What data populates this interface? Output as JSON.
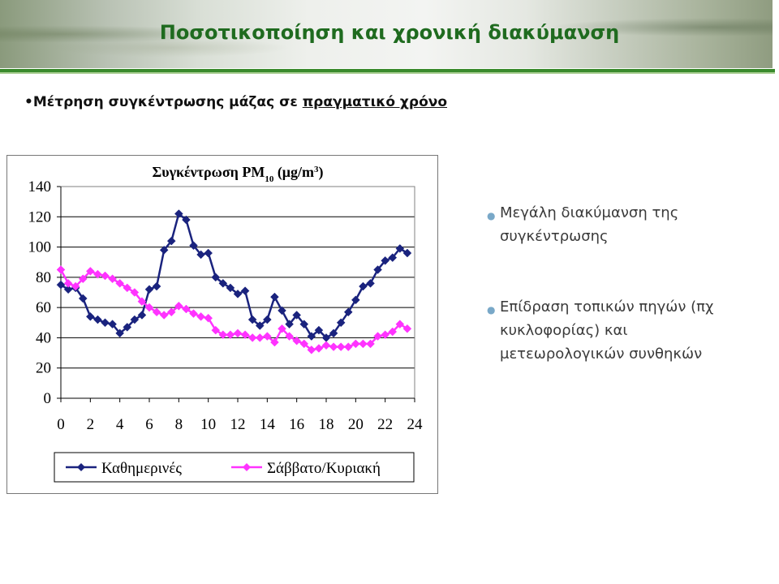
{
  "header": {
    "title": "Ποσοτικοποίηση και  χρονική διακύμανση"
  },
  "bullet": {
    "text": "Μέτρηση συγκέντρωσης μάζας σε ",
    "underlined": "πραγματικό χρόνο"
  },
  "side_points": [
    {
      "text": "Μεγάλη διακύμανση της συγκέντρωσης"
    },
    {
      "text": "Επίδραση τοπικών πηγών (πχ κυκλοφορίας) και μετεωρολογικών συνθηκών"
    }
  ],
  "colors": {
    "title": "#1f6b1f",
    "accent_line": "#3a8a2c",
    "series_weekday": "#1a237e",
    "series_weekend": "#ff33ff"
  },
  "chart_data": {
    "type": "line",
    "title": "Συγκέντρωση PM",
    "title_sub": "10",
    "title_unit": " (μg/m",
    "title_sup": "3",
    "title_end": ")",
    "xlim": [
      0,
      24
    ],
    "ylim": [
      0,
      140
    ],
    "x_ticks": [
      "0",
      "2",
      "4",
      "6",
      "8",
      "10",
      "12",
      "14",
      "16",
      "18",
      "20",
      "22",
      "24"
    ],
    "y_ticks": [
      "0",
      "20",
      "40",
      "60",
      "80",
      "100",
      "120",
      "140"
    ],
    "grid": true,
    "legend_position": "bottom",
    "x": [
      0,
      0.5,
      1,
      1.5,
      2,
      2.5,
      3,
      3.5,
      4,
      4.5,
      5,
      5.5,
      6,
      6.5,
      7,
      7.5,
      8,
      8.5,
      9,
      9.5,
      10,
      10.5,
      11,
      11.5,
      12,
      12.5,
      13,
      13.5,
      14,
      14.5,
      15,
      15.5,
      16,
      16.5,
      17,
      17.5,
      18,
      18.5,
      19,
      19.5,
      20,
      20.5,
      21,
      21.5,
      22,
      22.5,
      23,
      23.5
    ],
    "series": [
      {
        "name": "Καθημερινές",
        "color": "#1a237e",
        "marker": "diamond",
        "values": [
          75,
          72,
          73,
          66,
          54,
          52,
          50,
          49,
          43,
          47,
          52,
          55,
          72,
          74,
          98,
          104,
          122,
          118,
          101,
          95,
          96,
          80,
          76,
          73,
          69,
          71,
          52,
          48,
          52,
          67,
          58,
          49,
          55,
          49,
          41,
          45,
          40,
          43,
          50,
          57,
          65,
          74,
          76,
          85,
          91,
          93,
          99,
          96
        ]
      },
      {
        "name": "Σάββατο/Κυριακή",
        "color": "#ff33ff",
        "marker": "diamond",
        "values": [
          85,
          76,
          74,
          79,
          84,
          82,
          81,
          79,
          76,
          73,
          70,
          64,
          60,
          57,
          55,
          57,
          61,
          59,
          56,
          54,
          53,
          45,
          42,
          42,
          43,
          42,
          40,
          40,
          41,
          37,
          46,
          41,
          38,
          36,
          32,
          33,
          35,
          34,
          34,
          34,
          36,
          36,
          36,
          41,
          42,
          44,
          49,
          46
        ]
      }
    ]
  }
}
